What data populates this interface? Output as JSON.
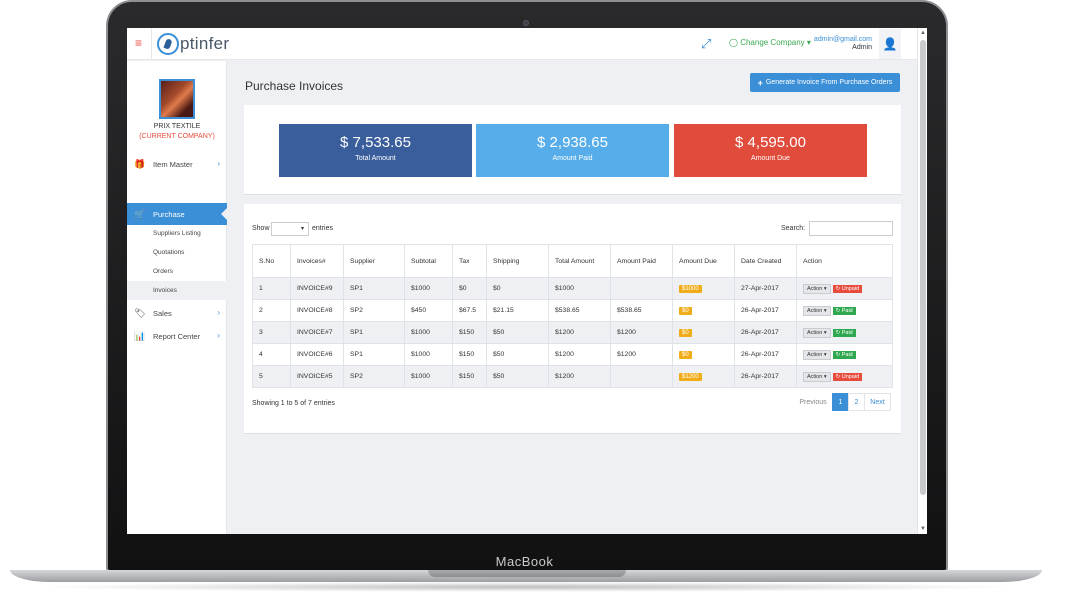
{
  "device": {
    "brand": "MacBook"
  },
  "topbar": {
    "logo_text": "ptinfer",
    "change_company": "Change Company",
    "user_email": "admin@gmail.com",
    "user_role": "Admin"
  },
  "sidebar": {
    "company_name": "PRIX TEXTILE",
    "company_sub": "(CURRENT COMPANY)",
    "items": [
      {
        "label": "Item Master",
        "icon": "gift-icon"
      },
      {
        "label": "Purchase",
        "icon": "cart-icon"
      },
      {
        "label": "Sales",
        "icon": "tags-icon"
      },
      {
        "label": "Report Center",
        "icon": "bar-chart-icon"
      }
    ],
    "sub_items": [
      "Suppliers Listing",
      "Quotations",
      "Orders",
      "Invoices"
    ]
  },
  "main": {
    "title": "Purchase Invoices",
    "generate_button": "Generate Invoice From Purchase Orders",
    "stats": [
      {
        "value": "$ 7,533.65",
        "label": "Total Amount",
        "color": "#3a5d9c"
      },
      {
        "value": "$ 2,938.65",
        "label": "Amount Paid",
        "color": "#56adea"
      },
      {
        "value": "$ 4,595.00",
        "label": "Amount Due",
        "color": "#e04b3c"
      }
    ],
    "table": {
      "show_label": "Show",
      "entries_label": "entries",
      "search_label": "Search:",
      "headers": [
        "S.No",
        "Invoices#",
        "Supplier",
        "Subtotal",
        "Tax",
        "Shipping",
        "Total Amount",
        "Amount Paid",
        "Amount Due",
        "Date Created",
        "Action"
      ],
      "rows": [
        {
          "sno": "1",
          "invoice": "INVOICE#9",
          "supplier": "SP1",
          "subtotal": "$1000",
          "tax": "$0",
          "shipping": "$0",
          "total": "$1000",
          "paid": "",
          "due": "$1000",
          "date": "27-Apr-2017",
          "action": "Action",
          "status": "Unpaid"
        },
        {
          "sno": "2",
          "invoice": "INVOICE#8",
          "supplier": "SP2",
          "subtotal": "$450",
          "tax": "$67.5",
          "shipping": "$21.15",
          "total": "$538.65",
          "paid": "$538.65",
          "due": "$0",
          "date": "26-Apr-2017",
          "action": "Action",
          "status": "Paid"
        },
        {
          "sno": "3",
          "invoice": "INVOICE#7",
          "supplier": "SP1",
          "subtotal": "$1000",
          "tax": "$150",
          "shipping": "$50",
          "total": "$1200",
          "paid": "$1200",
          "due": "$0",
          "date": "26-Apr-2017",
          "action": "Action",
          "status": "Paid"
        },
        {
          "sno": "4",
          "invoice": "INVOICE#6",
          "supplier": "SP1",
          "subtotal": "$1000",
          "tax": "$150",
          "shipping": "$50",
          "total": "$1200",
          "paid": "$1200",
          "due": "$0",
          "date": "26-Apr-2017",
          "action": "Action",
          "status": "Paid"
        },
        {
          "sno": "5",
          "invoice": "INVOICE#5",
          "supplier": "SP2",
          "subtotal": "$1000",
          "tax": "$150",
          "shipping": "$50",
          "total": "$1200",
          "paid": "",
          "due": "$1200",
          "date": "26-Apr-2017",
          "action": "Action",
          "status": "Unpaid"
        }
      ],
      "showing_text": "Showing 1 to 5 of 7 entries",
      "pager": {
        "previous": "Previous",
        "page1": "1",
        "page2": "2",
        "next": "Next"
      }
    }
  },
  "colors": {
    "accent": "#3b8fd6",
    "paid": "#2fa84f",
    "unpaid": "#e74c3c",
    "due_badge": "#f0ad1a"
  }
}
